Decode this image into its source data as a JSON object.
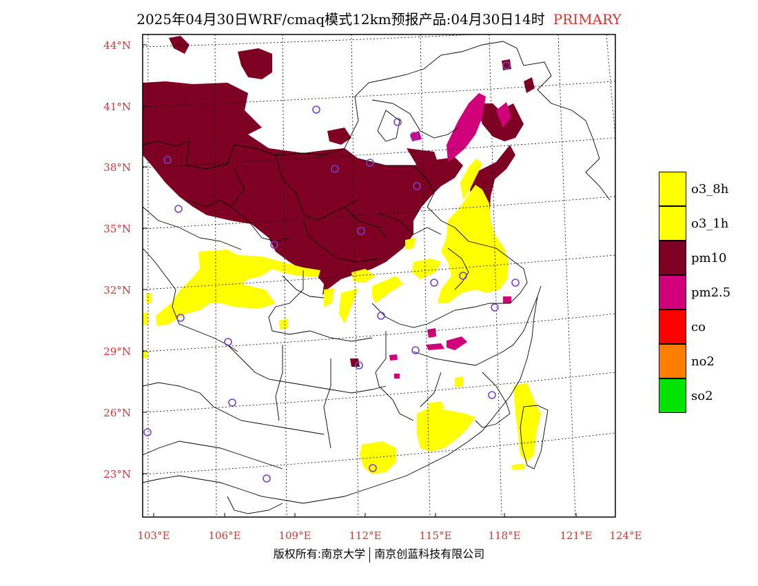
{
  "title": {
    "main": "2025年04月30日WRF/cmaq模式12km预报产品:04月30日14时",
    "tag": "PRIMARY"
  },
  "axes": {
    "lat_labels": [
      "44°N",
      "41°N",
      "38°N",
      "35°N",
      "32°N",
      "29°N",
      "26°N",
      "23°N"
    ],
    "lon_labels": [
      "103°E",
      "106°E",
      "109°E",
      "112°E",
      "115°E",
      "118°E",
      "121°E",
      "124°E"
    ]
  },
  "legend": [
    {
      "label": "o3_8h",
      "color": "#ffff00"
    },
    {
      "label": "o3_1h",
      "color": "#ffff00"
    },
    {
      "label": "pm10",
      "color": "#7e0023"
    },
    {
      "label": "pm2.5",
      "color": "#d0007a"
    },
    {
      "label": "co",
      "color": "#ff0000"
    },
    {
      "label": "no2",
      "color": "#ff7e00"
    },
    {
      "label": "so2",
      "color": "#00e400"
    }
  ],
  "credit": {
    "left": "版权所有:南京大学",
    "right": "南京创蓝科技有限公司"
  },
  "colors": {
    "pm10": "#7e0023",
    "pm25": "#d0007a",
    "o3": "#ffff00",
    "ticks": "#e03030",
    "stations": "#7b3fd0"
  }
}
